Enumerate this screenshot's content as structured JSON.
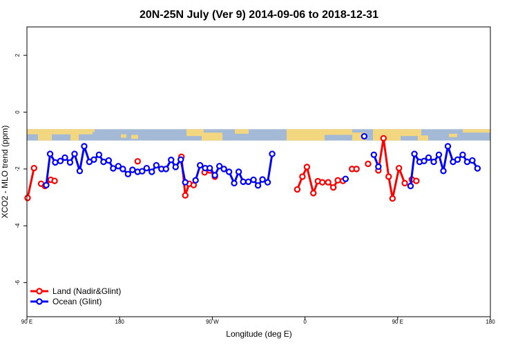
{
  "chart_data": {
    "type": "line",
    "title": "20N-25N July (Ver 9)   2014-09-06 to 2018-12-31",
    "xlabel": "Longitude (deg E)",
    "ylabel": "XCO2 - MLO trend (ppm)",
    "xlim": [
      90,
      450
    ],
    "ylim": [
      -7.2,
      3.0
    ],
    "x_ticks": [
      {
        "value": 90,
        "label": "90 E"
      },
      {
        "value": 162,
        "label": "180"
      },
      {
        "value": 234,
        "label": "90 W"
      },
      {
        "value": 306,
        "label": "0"
      },
      {
        "value": 378,
        "label": "90 E"
      },
      {
        "value": 450,
        "label": "180"
      }
    ],
    "y_ticks": [
      {
        "value": 2,
        "label": "2"
      },
      {
        "value": 0,
        "label": "0"
      },
      {
        "value": -2,
        "label": "-2"
      },
      {
        "value": -4,
        "label": "-4"
      },
      {
        "value": -6,
        "label": "-6"
      }
    ],
    "map_band": {
      "ymin": -1.0,
      "ymax": -0.6,
      "ocean_color": "#a3b9d6",
      "land_color": "#f2d680"
    },
    "legend_position": "bottom-left",
    "series": [
      {
        "name": "Land (Nadir&Glint)",
        "color": "#ff0000",
        "points": [
          [
            90.5,
            -3.02
          ],
          [
            95.5,
            -1.97
          ],
          [
            101,
            -2.52
          ],
          [
            104,
            -2.6
          ],
          [
            108.5,
            -2.38
          ],
          [
            111.5,
            -2.42
          ],
          [
            176,
            -1.73
          ],
          [
            210,
            -1.57
          ],
          [
            213,
            -2.93
          ],
          [
            216,
            -2.52
          ],
          [
            219.5,
            -2.57
          ],
          [
            228,
            -2.12
          ],
          [
            232,
            -2.05
          ],
          [
            236,
            -2.27
          ],
          [
            300,
            -2.72
          ],
          [
            304,
            -2.27
          ],
          [
            307.5,
            -1.93
          ],
          [
            312.5,
            -2.85
          ],
          [
            316,
            -2.43
          ],
          [
            319.5,
            -2.47
          ],
          [
            324,
            -2.47
          ],
          [
            328,
            -2.65
          ],
          [
            331.5,
            -2.4
          ],
          [
            335.5,
            -2.42
          ],
          [
            342.5,
            -2.0
          ],
          [
            346,
            -2.0
          ],
          [
            355,
            -1.82
          ],
          [
            363,
            -2.05
          ],
          [
            367,
            -0.92
          ],
          [
            371,
            -2.27
          ],
          [
            374,
            -3.04
          ],
          [
            379,
            -1.97
          ],
          [
            383.5,
            -2.5
          ],
          [
            389,
            -2.37
          ],
          [
            392.5,
            -2.42
          ]
        ]
      },
      {
        "name": "Ocean (Glint)",
        "color": "#0000ff",
        "points": [
          [
            105,
            -2.57
          ],
          [
            108,
            -1.47
          ],
          [
            112,
            -1.77
          ],
          [
            116,
            -1.72
          ],
          [
            119.5,
            -1.6
          ],
          [
            123.5,
            -1.77
          ],
          [
            127,
            -1.47
          ],
          [
            131,
            -2.07
          ],
          [
            134.5,
            -1.2
          ],
          [
            138.5,
            -1.75
          ],
          [
            142,
            -1.67
          ],
          [
            146,
            -1.5
          ],
          [
            149.5,
            -1.75
          ],
          [
            153.5,
            -1.7
          ],
          [
            157,
            -1.98
          ],
          [
            161,
            -1.9
          ],
          [
            164.5,
            -2.0
          ],
          [
            168.5,
            -2.18
          ],
          [
            172,
            -2.03
          ],
          [
            176,
            -2.1
          ],
          [
            179.5,
            -2.08
          ],
          [
            183,
            -1.97
          ],
          [
            187,
            -2.1
          ],
          [
            190.5,
            -1.87
          ],
          [
            194.5,
            -2.0
          ],
          [
            198,
            -2.0
          ],
          [
            202,
            -1.68
          ],
          [
            205.5,
            -1.93
          ],
          [
            209.5,
            -1.67
          ],
          [
            213,
            -2.47
          ],
          [
            221,
            -2.4
          ],
          [
            224.5,
            -1.87
          ],
          [
            228.5,
            -1.97
          ],
          [
            232,
            -1.97
          ],
          [
            236,
            -2.22
          ],
          [
            239.5,
            -1.9
          ],
          [
            243,
            -2.0
          ],
          [
            247,
            -2.1
          ],
          [
            251,
            -2.5
          ],
          [
            254.5,
            -2.1
          ],
          [
            258,
            -2.45
          ],
          [
            262,
            -2.45
          ],
          [
            266,
            -2.38
          ],
          [
            269.5,
            -2.58
          ],
          [
            273,
            -2.37
          ],
          [
            277,
            -2.47
          ],
          [
            280.5,
            -1.47
          ],
          [
            337.5,
            -2.35
          ],
          [
            352,
            -0.85
          ],
          [
            359.5,
            -1.5
          ],
          [
            363,
            -1.92
          ],
          [
            388,
            -2.6
          ],
          [
            391,
            -1.47
          ],
          [
            395,
            -1.75
          ],
          [
            398.5,
            -1.72
          ],
          [
            402,
            -1.6
          ],
          [
            406,
            -1.75
          ],
          [
            410,
            -1.5
          ],
          [
            413.5,
            -2.07
          ],
          [
            417,
            -1.2
          ],
          [
            421,
            -1.75
          ],
          [
            424.5,
            -1.67
          ],
          [
            428.5,
            -1.5
          ],
          [
            432,
            -1.75
          ],
          [
            436,
            -1.7
          ],
          [
            440,
            -1.98
          ]
        ]
      }
    ]
  }
}
